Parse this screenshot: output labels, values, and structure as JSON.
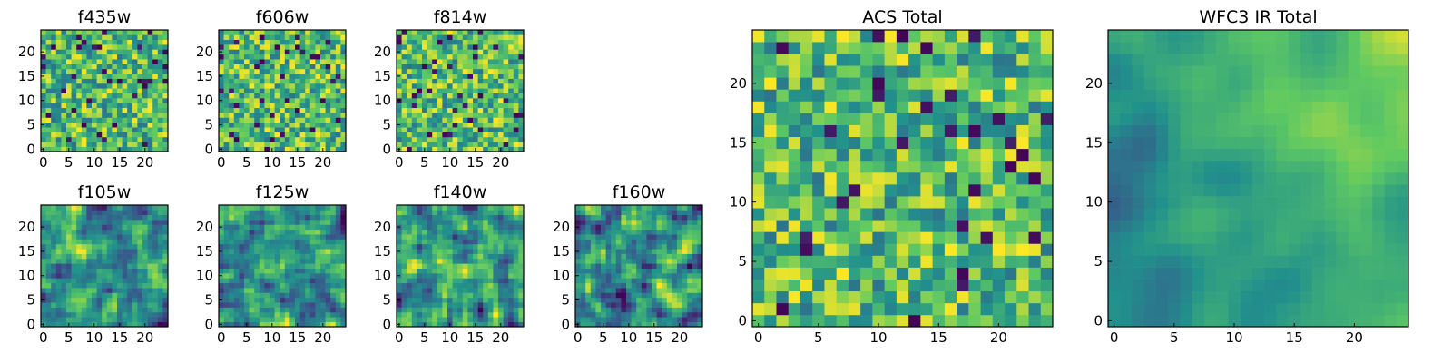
{
  "chart_data": [
    {
      "type": "heatmap",
      "title": "f435w",
      "xticks": [
        0,
        5,
        10,
        15,
        20
      ],
      "yticks": [
        0,
        5,
        10,
        15,
        20
      ],
      "grid_size": 25,
      "xlim": [
        0,
        24
      ],
      "ylim": [
        0,
        24
      ],
      "colormap": "viridis",
      "pattern": "noise",
      "seed": 11,
      "grid": false
    },
    {
      "type": "heatmap",
      "title": "f606w",
      "xticks": [
        0,
        5,
        10,
        15,
        20
      ],
      "yticks": [
        0,
        5,
        10,
        15,
        20
      ],
      "grid_size": 25,
      "xlim": [
        0,
        24
      ],
      "ylim": [
        0,
        24
      ],
      "colormap": "viridis",
      "pattern": "noise",
      "seed": 23,
      "grid": false
    },
    {
      "type": "heatmap",
      "title": "f814w",
      "xticks": [
        0,
        5,
        10,
        15,
        20
      ],
      "yticks": [
        0,
        5,
        10,
        15,
        20
      ],
      "grid_size": 25,
      "xlim": [
        0,
        24
      ],
      "ylim": [
        0,
        24
      ],
      "colormap": "viridis",
      "pattern": "noise",
      "seed": 37,
      "grid": false
    },
    {
      "type": "heatmap",
      "title": "f105w",
      "xticks": [
        0,
        5,
        10,
        15,
        20
      ],
      "yticks": [
        0,
        5,
        10,
        15,
        20
      ],
      "grid_size": 25,
      "xlim": [
        0,
        24
      ],
      "ylim": [
        0,
        24
      ],
      "colormap": "viridis",
      "pattern": "smooth",
      "seed": 41,
      "grid": false
    },
    {
      "type": "heatmap",
      "title": "f125w",
      "xticks": [
        0,
        5,
        10,
        15,
        20
      ],
      "yticks": [
        0,
        5,
        10,
        15,
        20
      ],
      "grid_size": 25,
      "xlim": [
        0,
        24
      ],
      "ylim": [
        0,
        24
      ],
      "colormap": "viridis",
      "pattern": "smooth",
      "seed": 53,
      "grid": false
    },
    {
      "type": "heatmap",
      "title": "f140w",
      "xticks": [
        0,
        5,
        10,
        15,
        20
      ],
      "yticks": [
        0,
        5,
        10,
        15,
        20
      ],
      "grid_size": 25,
      "xlim": [
        0,
        24
      ],
      "ylim": [
        0,
        24
      ],
      "colormap": "viridis",
      "pattern": "smooth",
      "seed": 67,
      "grid": false
    },
    {
      "type": "heatmap",
      "title": "f160w",
      "xticks": [
        0,
        5,
        10,
        15,
        20
      ],
      "yticks": [
        0,
        5,
        10,
        15,
        20
      ],
      "grid_size": 25,
      "xlim": [
        0,
        24
      ],
      "ylim": [
        0,
        24
      ],
      "colormap": "viridis",
      "pattern": "smooth",
      "seed": 79,
      "grid": false
    },
    {
      "type": "heatmap",
      "title": "ACS Total",
      "xticks": [
        0,
        5,
        10,
        15,
        20
      ],
      "yticks": [
        0,
        5,
        10,
        15,
        20
      ],
      "grid_size": 25,
      "xlim": [
        0,
        24
      ],
      "ylim": [
        0,
        24
      ],
      "colormap": "viridis",
      "pattern": "noise",
      "seed": 97,
      "grid": false
    },
    {
      "type": "heatmap",
      "title": "WFC3 IR Total",
      "xticks": [
        0,
        5,
        10,
        15,
        20
      ],
      "yticks": [
        0,
        5,
        10,
        15,
        20
      ],
      "grid_size": 25,
      "xlim": [
        0,
        24
      ],
      "ylim": [
        0,
        24
      ],
      "colormap": "viridis",
      "pattern": "gradient",
      "seed": 113,
      "grid": false
    }
  ]
}
